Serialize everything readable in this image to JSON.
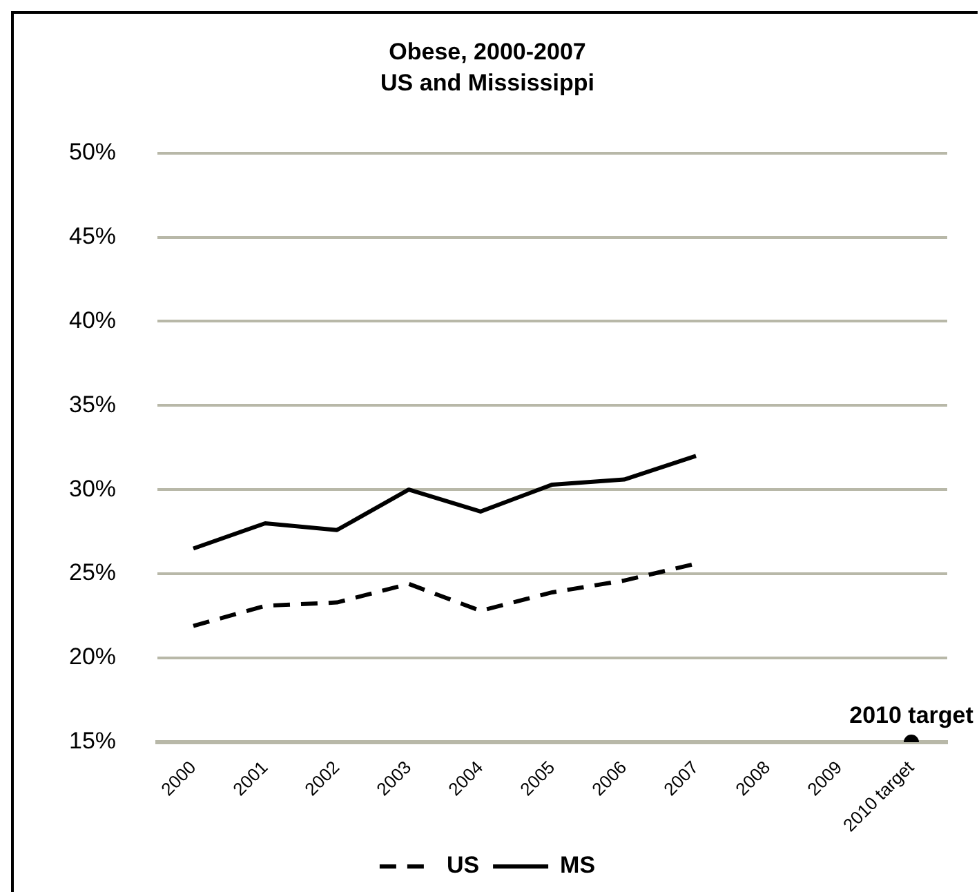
{
  "chart_data": {
    "type": "line",
    "title": "Obese, 2000-2007",
    "subtitle": "US and Mississippi",
    "categories": [
      "2000",
      "2001",
      "2002",
      "2003",
      "2004",
      "2005",
      "2006",
      "2007",
      "2008",
      "2009",
      "2010 target"
    ],
    "series": [
      {
        "name": "US",
        "color": "#000000",
        "line_style": "dashed",
        "marker": "none",
        "values": [
          21.9,
          23.1,
          23.3,
          24.4,
          22.8,
          23.9,
          24.6,
          25.6,
          null,
          null,
          null
        ]
      },
      {
        "name": "MS",
        "color": "#000000",
        "line_style": "solid",
        "marker": "none",
        "values": [
          26.5,
          28.0,
          27.6,
          30.0,
          28.7,
          30.3,
          30.6,
          32.0,
          null,
          null,
          null
        ]
      },
      {
        "type": "scatter",
        "color": "#000000",
        "marker": "circle",
        "values": [
          null,
          null,
          null,
          null,
          null,
          null,
          null,
          null,
          null,
          null,
          15
        ]
      }
    ],
    "ylim": [
      15,
      50
    ],
    "yticks": [
      {
        "value": 15,
        "label": "15%"
      },
      {
        "value": 20,
        "label": "20%"
      },
      {
        "value": 25,
        "label": "25%"
      },
      {
        "value": 30,
        "label": "30%"
      },
      {
        "value": 35,
        "label": "35%"
      },
      {
        "value": 40,
        "label": "40%"
      },
      {
        "value": 45,
        "label": "45%"
      },
      {
        "value": 50,
        "label": "50%"
      }
    ],
    "annotations": [
      {
        "text": "2010 target",
        "x": "2010 target",
        "y": 15
      }
    ],
    "grid": "y",
    "legend": "bottom"
  }
}
